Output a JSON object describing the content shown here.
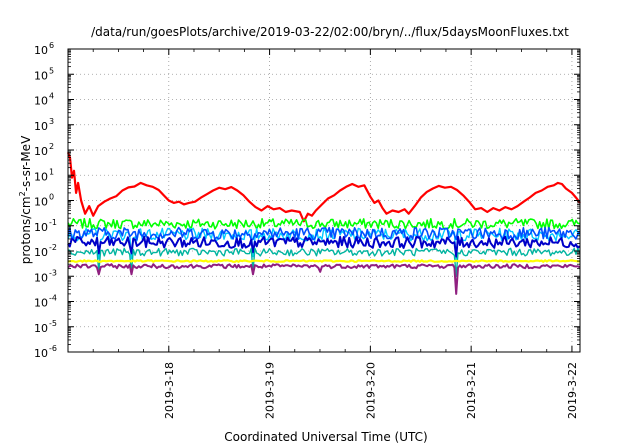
{
  "chart_data": {
    "type": "line",
    "title": "/data/run/goesPlots/archive/2019-03-22/02:00/bryn/../flux/5daysMoonFluxes.txt",
    "xlabel": "Coordinated Universal Time (UTC)",
    "ylabel": "protons/cm2-s-sr-MeV",
    "ylabel_parts": {
      "base": "protons/cm",
      "exp": "2",
      "rest": "-s-sr-MeV"
    },
    "yscale": "log",
    "ylim_exp": [
      -6,
      6
    ],
    "ytick_exponents": [
      -6,
      -5,
      -4,
      -3,
      -2,
      -1,
      0,
      1,
      2,
      3,
      4,
      5,
      6
    ],
    "ytick_base": "10",
    "xlim_days": [
      17.0,
      22.08
    ],
    "xticks": [
      {
        "day": 18,
        "label": "2019-3-18"
      },
      {
        "day": 19,
        "label": "2019-3-19"
      },
      {
        "day": 20,
        "label": "2019-3-20"
      },
      {
        "day": 21,
        "label": "2019-3-21"
      },
      {
        "day": 22,
        "label": "2019-3-22"
      }
    ],
    "grid": true,
    "series": [
      {
        "color": "#ff0000",
        "width": 2.2,
        "points": [
          [
            17.0,
            80
          ],
          [
            17.02,
            50
          ],
          [
            17.04,
            8
          ],
          [
            17.06,
            15
          ],
          [
            17.08,
            2
          ],
          [
            17.1,
            5
          ],
          [
            17.13,
            1
          ],
          [
            17.17,
            0.3
          ],
          [
            17.21,
            0.6
          ],
          [
            17.25,
            0.25
          ],
          [
            17.3,
            0.6
          ],
          [
            17.36,
            0.9
          ],
          [
            17.42,
            1.2
          ],
          [
            17.48,
            1.5
          ],
          [
            17.54,
            2.5
          ],
          [
            17.6,
            3.3
          ],
          [
            17.66,
            3.6
          ],
          [
            17.72,
            5
          ],
          [
            17.78,
            4
          ],
          [
            17.84,
            3.5
          ],
          [
            17.9,
            2.6
          ],
          [
            17.95,
            1.6
          ],
          [
            18.0,
            1.0
          ],
          [
            18.05,
            0.8
          ],
          [
            18.1,
            0.9
          ],
          [
            18.15,
            0.7
          ],
          [
            18.2,
            0.8
          ],
          [
            18.26,
            0.9
          ],
          [
            18.32,
            1.3
          ],
          [
            18.38,
            1.8
          ],
          [
            18.44,
            2.5
          ],
          [
            18.5,
            3.2
          ],
          [
            18.56,
            2.8
          ],
          [
            18.62,
            3.4
          ],
          [
            18.68,
            2.5
          ],
          [
            18.74,
            1.6
          ],
          [
            18.8,
            0.9
          ],
          [
            18.86,
            0.55
          ],
          [
            18.92,
            0.4
          ],
          [
            18.98,
            0.6
          ],
          [
            19.04,
            0.45
          ],
          [
            19.1,
            0.5
          ],
          [
            19.16,
            0.35
          ],
          [
            19.22,
            0.4
          ],
          [
            19.3,
            0.35
          ],
          [
            19.34,
            0.15
          ],
          [
            19.38,
            0.3
          ],
          [
            19.42,
            0.25
          ],
          [
            19.46,
            0.4
          ],
          [
            19.52,
            0.7
          ],
          [
            19.58,
            1.2
          ],
          [
            19.64,
            1.6
          ],
          [
            19.7,
            2.5
          ],
          [
            19.76,
            3.5
          ],
          [
            19.82,
            4.5
          ],
          [
            19.88,
            3.5
          ],
          [
            19.94,
            4.0
          ],
          [
            20.0,
            1.4
          ],
          [
            20.04,
            0.8
          ],
          [
            20.08,
            1.0
          ],
          [
            20.12,
            0.5
          ],
          [
            20.16,
            0.3
          ],
          [
            20.22,
            0.4
          ],
          [
            20.28,
            0.35
          ],
          [
            20.34,
            0.45
          ],
          [
            20.38,
            0.3
          ],
          [
            20.44,
            0.6
          ],
          [
            20.5,
            1.3
          ],
          [
            20.56,
            2.2
          ],
          [
            20.62,
            3.0
          ],
          [
            20.68,
            3.8
          ],
          [
            20.74,
            3.2
          ],
          [
            20.8,
            3.5
          ],
          [
            20.86,
            2.6
          ],
          [
            20.92,
            1.6
          ],
          [
            20.98,
            0.9
          ],
          [
            21.04,
            0.45
          ],
          [
            21.1,
            0.5
          ],
          [
            21.16,
            0.35
          ],
          [
            21.22,
            0.5
          ],
          [
            21.28,
            0.4
          ],
          [
            21.34,
            0.55
          ],
          [
            21.4,
            0.45
          ],
          [
            21.46,
            0.6
          ],
          [
            21.52,
            0.9
          ],
          [
            21.58,
            1.3
          ],
          [
            21.64,
            2.0
          ],
          [
            21.7,
            2.5
          ],
          [
            21.76,
            3.5
          ],
          [
            21.82,
            4.0
          ],
          [
            21.86,
            5
          ],
          [
            21.9,
            4.5
          ],
          [
            21.94,
            3.0
          ],
          [
            22.0,
            2.0
          ],
          [
            22.04,
            1.3
          ],
          [
            22.08,
            0.8
          ]
        ]
      },
      {
        "color": "#00ff00",
        "width": 1.6,
        "base": 0.12,
        "amp": 0.2,
        "dips": []
      },
      {
        "color": "#00c8ff",
        "width": 1.4,
        "base": 0.045,
        "amp": 0.25,
        "dips": [
          [
            17.3,
            0.005
          ],
          [
            17.63,
            0.005
          ],
          [
            18.83,
            0.006
          ],
          [
            20.85,
            0.004
          ]
        ]
      },
      {
        "color": "#0050ff",
        "width": 1.6,
        "base": 0.05,
        "amp": 0.25,
        "dips": []
      },
      {
        "color": "#0000c8",
        "width": 2.0,
        "base": 0.022,
        "amp": 0.22,
        "dips": [
          [
            17.3,
            0.008
          ],
          [
            17.63,
            0.008
          ],
          [
            18.83,
            0.009
          ],
          [
            20.85,
            0.006
          ]
        ]
      },
      {
        "color": "#00b4a0",
        "width": 1.4,
        "base": 0.009,
        "amp": 0.15,
        "dips": [
          [
            17.3,
            0.0015
          ],
          [
            17.63,
            0.0015
          ],
          [
            18.83,
            0.0015
          ],
          [
            20.85,
            0.001
          ]
        ]
      },
      {
        "color": "#ffff00",
        "width": 2.2,
        "base": 0.004,
        "amp": 0.03,
        "dips": []
      },
      {
        "color": "#902080",
        "width": 2.0,
        "base": 0.0025,
        "amp": 0.08,
        "dips": [
          [
            17.3,
            0.0012
          ],
          [
            17.63,
            0.0012
          ],
          [
            18.83,
            0.0012
          ],
          [
            19.5,
            0.0015
          ],
          [
            20.85,
            0.0002
          ]
        ]
      }
    ]
  }
}
